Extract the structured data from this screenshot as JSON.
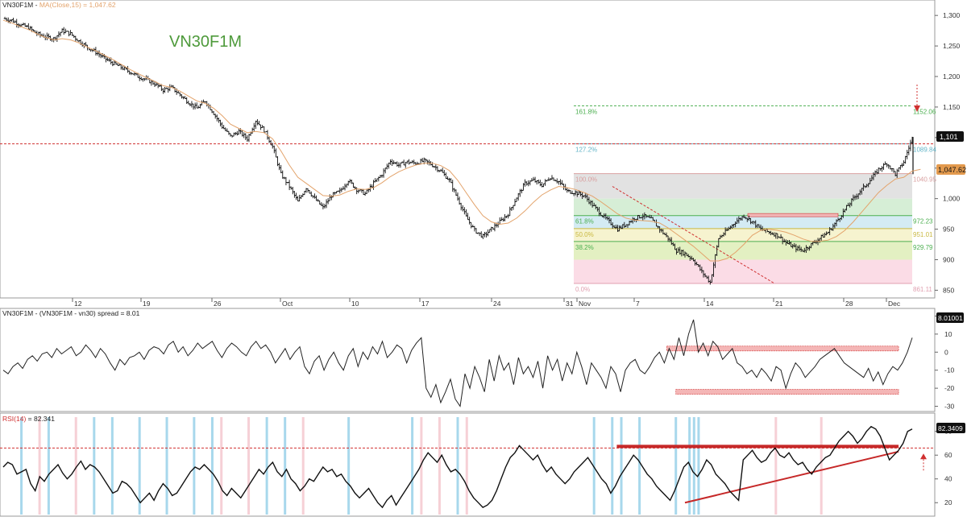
{
  "chart_data": [
    {
      "type": "candlestick",
      "title": "VN30F1M",
      "header": "VN30F1M - MA(Close,15) = 1,047.62",
      "header_prefix": "VN30F1M - ",
      "header_ma": "MA(Close,15) = 1,047.62",
      "ylim": [
        840,
        1320
      ],
      "y_ticks": [
        {
          "v": 850,
          "label": "850"
        },
        {
          "v": 900,
          "label": "900"
        },
        {
          "v": 950,
          "label": "950"
        },
        {
          "v": 1000,
          "label": "1,000"
        },
        {
          "v": 1050,
          "label": "1,050"
        },
        {
          "v": 1100,
          "label": "1,100"
        },
        {
          "v": 1150,
          "label": "1,150"
        },
        {
          "v": 1200,
          "label": "1,200"
        },
        {
          "v": 1250,
          "label": "1,250"
        },
        {
          "v": 1300,
          "label": "1,300"
        }
      ],
      "x_labels": [
        "12",
        "19",
        "26",
        "Oct",
        "10",
        "17",
        "24",
        "31",
        "Nov",
        "7",
        "14",
        "21",
        "28",
        "Dec"
      ],
      "price_path": [
        1295,
        1292,
        1285,
        1280,
        1270,
        1265,
        1262,
        1275,
        1270,
        1258,
        1248,
        1240,
        1230,
        1222,
        1215,
        1208,
        1200,
        1195,
        1188,
        1178,
        1182,
        1170,
        1158,
        1148,
        1160,
        1140,
        1118,
        1102,
        1110,
        1098,
        1128,
        1112,
        1085,
        1040,
        1020,
        995,
        1018,
        1000,
        985,
        1005,
        1012,
        1030,
        1015,
        1008,
        1025,
        1040,
        1062,
        1055,
        1060,
        1058,
        1062,
        1055,
        1045,
        1030,
        1000,
        970,
        948,
        938,
        950,
        962,
        975,
        1002,
        1025,
        1030,
        1022,
        1035,
        1028,
        1012,
        1010,
        1005,
        990,
        975,
        962,
        950,
        958,
        968,
        972,
        966,
        950,
        935,
        915,
        910,
        900,
        880,
        863,
        935,
        948,
        962,
        972,
        962,
        950,
        945,
        940,
        928,
        920,
        915,
        925,
        935,
        945,
        962,
        982,
        1000,
        1015,
        1030,
        1048,
        1058,
        1040,
        1060,
        1099
      ],
      "ma_path": [
        1292,
        1288,
        1282,
        1277,
        1270,
        1264,
        1260,
        1262,
        1260,
        1255,
        1248,
        1242,
        1235,
        1228,
        1220,
        1212,
        1205,
        1198,
        1192,
        1185,
        1182,
        1176,
        1168,
        1160,
        1156,
        1148,
        1136,
        1122,
        1115,
        1108,
        1110,
        1108,
        1098,
        1078,
        1055,
        1035,
        1025,
        1015,
        1005,
        1004,
        1006,
        1012,
        1016,
        1015,
        1018,
        1026,
        1036,
        1044,
        1050,
        1055,
        1058,
        1058,
        1054,
        1046,
        1030,
        1010,
        990,
        972,
        962,
        958,
        960,
        968,
        980,
        994,
        1006,
        1014,
        1020,
        1018,
        1015,
        1010,
        1004,
        995,
        985,
        975,
        968,
        965,
        964,
        963,
        960,
        952,
        942,
        932,
        922,
        910,
        898,
        898,
        902,
        912,
        925,
        940,
        948,
        950,
        948,
        945,
        940,
        934,
        930,
        930,
        932,
        938,
        948,
        962,
        978,
        994,
        1010,
        1022,
        1032,
        1035,
        1045,
        1048
      ],
      "last_price": "1,101",
      "ma_value": "1,047.62",
      "annotation_label": "VN30F1M",
      "fib_levels": [
        {
          "pct": "161.8%",
          "value": "1152.06",
          "price": 1152,
          "color": "#4CAF50"
        },
        {
          "pct": "127.2%",
          "value": "1089.84",
          "price": 1089.8,
          "color": "#64B5C8"
        },
        {
          "pct": "100.0%",
          "value": "1040.95",
          "price": 1041,
          "color": "#D9A0A0"
        },
        {
          "pct": "61.8%",
          "value": "972.23",
          "price": 972.2,
          "color": "#4CAF50"
        },
        {
          "pct": "50.0%",
          "value": "951.01",
          "price": 951,
          "color": "#C9B840"
        },
        {
          "pct": "38.2%",
          "value": "929.79",
          "price": 929.8,
          "color": "#4CAF50"
        },
        {
          "pct": "0.0%",
          "value": "861.11",
          "price": 861.1,
          "color": "#E0A0B0"
        }
      ],
      "fib_bands": [
        {
          "from": 1041,
          "to": 1000,
          "color": "#E2E2E2"
        },
        {
          "from": 1000,
          "to": 972.2,
          "color": "#D6EED6"
        },
        {
          "from": 972.2,
          "to": 951,
          "color": "#D4EBF3"
        },
        {
          "from": 951,
          "to": 929.8,
          "color": "#F6F3CF"
        },
        {
          "from": 929.8,
          "to": 900,
          "color": "#E3F0C2"
        },
        {
          "from": 900,
          "to": 861.1,
          "color": "#FBDCE6"
        }
      ]
    },
    {
      "type": "line",
      "header": "VN30F1M - (VN30F1M - vn30) spread = 8.01",
      "ylim": [
        -32,
        22
      ],
      "y_ticks": [
        {
          "v": 20,
          "label": "20"
        },
        {
          "v": 10,
          "label": "10"
        },
        {
          "v": 0,
          "label": "0"
        },
        {
          "v": -10,
          "label": "-10"
        },
        {
          "v": -20,
          "label": "-20"
        },
        {
          "v": -30,
          "label": "-30"
        }
      ],
      "last_value": "8.01001",
      "values": [
        -10,
        -12,
        -8,
        -6,
        -9,
        -4,
        -2,
        -5,
        -1,
        0,
        -3,
        2,
        -1,
        1,
        3,
        -2,
        0,
        4,
        1,
        -3,
        2,
        -1,
        -6,
        -10,
        -4,
        -7,
        -3,
        -2,
        0,
        -4,
        1,
        3,
        2,
        -1,
        4,
        6,
        0,
        3,
        -2,
        1,
        5,
        2,
        4,
        6,
        1,
        -3,
        2,
        5,
        3,
        0,
        -2,
        3,
        6,
        2,
        4,
        0,
        -6,
        -2,
        2,
        -4,
        0,
        3,
        -8,
        -12,
        -5,
        -2,
        -10,
        -4,
        0,
        -6,
        -10,
        -2,
        2,
        -8,
        0,
        -4,
        3,
        -1,
        6,
        -3,
        0,
        4,
        2,
        -6,
        1,
        5,
        8,
        -20,
        -25,
        -18,
        -28,
        -22,
        -15,
        -26,
        -30,
        -12,
        -20,
        -8,
        -14,
        -22,
        -4,
        -16,
        -2,
        -10,
        -6,
        -18,
        -3,
        -12,
        -8,
        -14,
        -5,
        -20,
        -2,
        -10,
        -4,
        -16,
        -6,
        -12,
        0,
        -8,
        -18,
        -6,
        -10,
        -14,
        -20,
        -8,
        -12,
        -22,
        -10,
        -6,
        -4,
        -10,
        -12,
        -8,
        -3,
        0,
        -6,
        2,
        -4,
        8,
        -2,
        10,
        18,
        0,
        5,
        -2,
        6,
        3,
        -4,
        -1,
        2,
        -6,
        -8,
        -12,
        -10,
        -14,
        -9,
        -12,
        -16,
        -8,
        -10,
        -20,
        -12,
        -6,
        -9,
        -14,
        -11,
        -8,
        -4,
        -2,
        0,
        2,
        -2,
        -6,
        -8,
        -10,
        -12,
        -14,
        -9,
        -16,
        -11,
        -18,
        -12,
        -8,
        -10,
        -6,
        0,
        8
      ],
      "zones": [
        {
          "from_frac": 0.73,
          "to_frac": 0.985,
          "y": 2,
          "width": 3
        },
        {
          "from_frac": 0.74,
          "to_frac": 0.985,
          "y": -22,
          "width": 3
        }
      ]
    },
    {
      "type": "line",
      "header": "RSI(14) = 82.341",
      "header_name": "RSI(14)",
      "header_eq": " = 82.341",
      "ylim": [
        10,
        92
      ],
      "y_ticks": [
        {
          "v": 80,
          "label": "80"
        },
        {
          "v": 60,
          "label": "60"
        },
        {
          "v": 40,
          "label": "40"
        },
        {
          "v": 20,
          "label": "20"
        }
      ],
      "last_value": "82.3409",
      "reference_level": 66,
      "values": [
        50,
        54,
        52,
        44,
        46,
        48,
        36,
        30,
        42,
        38,
        44,
        48,
        52,
        45,
        40,
        44,
        50,
        55,
        48,
        52,
        50,
        46,
        40,
        34,
        28,
        30,
        38,
        36,
        32,
        26,
        20,
        24,
        28,
        22,
        30,
        36,
        32,
        26,
        28,
        34,
        40,
        46,
        50,
        48,
        52,
        48,
        44,
        38,
        30,
        26,
        32,
        28,
        24,
        30,
        36,
        42,
        48,
        44,
        50,
        54,
        46,
        42,
        48,
        40,
        36,
        30,
        34,
        40,
        38,
        44,
        50,
        46,
        48,
        42,
        44,
        38,
        34,
        28,
        24,
        28,
        32,
        26,
        20,
        16,
        22,
        26,
        18,
        24,
        30,
        36,
        42,
        48,
        56,
        62,
        58,
        54,
        60,
        52,
        46,
        48,
        44,
        38,
        30,
        24,
        20,
        16,
        18,
        22,
        30,
        40,
        50,
        58,
        62,
        68,
        64,
        60,
        56,
        60,
        52,
        46,
        50,
        44,
        40,
        36,
        40,
        46,
        50,
        54,
        58,
        52,
        46,
        40,
        36,
        28,
        34,
        42,
        48,
        54,
        60,
        56,
        50,
        44,
        40,
        34,
        30,
        26,
        22,
        30,
        40,
        50,
        54,
        46,
        42,
        48,
        56,
        52,
        44,
        40,
        36,
        30,
        26,
        22,
        56,
        60,
        64,
        58,
        54,
        56,
        62,
        66,
        60,
        58,
        62,
        56,
        52,
        54,
        48,
        44,
        50,
        54,
        58,
        60,
        66,
        72,
        76,
        80,
        76,
        70,
        74,
        80,
        84,
        82,
        76,
        66,
        56,
        60,
        64,
        70,
        80,
        82
      ],
      "trendline": {
        "from_frac": 0.75,
        "from_v": 20,
        "to_frac": 0.985,
        "to_v": 63
      },
      "resistance": {
        "from_frac": 0.675,
        "to_frac": 0.985,
        "y": 66
      },
      "highlight_bars_blue": [
        0.02,
        0.05,
        0.1,
        0.12,
        0.15,
        0.18,
        0.21,
        0.23,
        0.29,
        0.31,
        0.38,
        0.45,
        0.5,
        0.65,
        0.67,
        0.68,
        0.7,
        0.74,
        0.755,
        0.76,
        0.765
      ],
      "highlight_bars_pink": [
        0.04,
        0.08,
        0.24,
        0.27,
        0.33,
        0.46,
        0.48,
        0.51,
        0.85,
        0.9
      ]
    }
  ]
}
